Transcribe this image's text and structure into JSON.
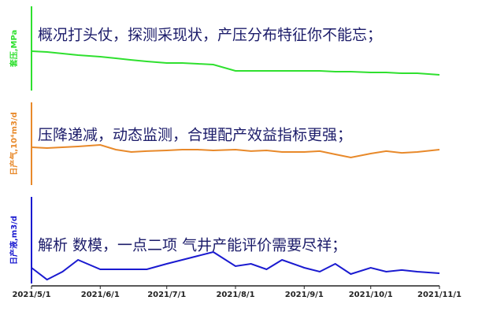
{
  "chart_data": [
    {
      "type": "line",
      "ylabel": "套压,MPa",
      "color": "#2fe02f",
      "ylim": [
        0,
        100
      ],
      "annotation": "概况打头仗，探测采现状，产压分布特征你不能忘；",
      "xlim": [
        "2021/5/1",
        "2021/11/1"
      ],
      "x": [
        "2021/5/1",
        "2021/5/8",
        "2021/5/15",
        "2021/5/22",
        "2021/6/1",
        "2021/6/8",
        "2021/6/15",
        "2021/6/22",
        "2021/7/1",
        "2021/7/8",
        "2021/7/15",
        "2021/7/22",
        "2021/8/1",
        "2021/8/8",
        "2021/8/15",
        "2021/8/22",
        "2021/9/1",
        "2021/9/8",
        "2021/9/15",
        "2021/9/22",
        "2021/10/1",
        "2021/10/8",
        "2021/10/15",
        "2021/10/22",
        "2021/11/1"
      ],
      "values": [
        46.7,
        45.8,
        43.9,
        42.1,
        40.2,
        38.3,
        36.4,
        34.6,
        32.7,
        32.7,
        31.8,
        30.8,
        23.4,
        23.4,
        23.4,
        23.4,
        23.4,
        23.4,
        22.4,
        22.4,
        21.5,
        21.5,
        20.6,
        20.6,
        18.7
      ]
    },
    {
      "type": "line",
      "ylabel": "日产气,10⁴m3/d",
      "color": "#e8892a",
      "ylim": [
        0,
        100
      ],
      "annotation": "压降递减，动态监测，合理配产效益指标更强；",
      "xlim": [
        "2021/5/1",
        "2021/11/1"
      ],
      "x": [
        "2021/5/1",
        "2021/5/8",
        "2021/5/15",
        "2021/5/22",
        "2021/6/1",
        "2021/6/8",
        "2021/6/15",
        "2021/6/22",
        "2021/7/1",
        "2021/7/8",
        "2021/7/15",
        "2021/7/22",
        "2021/8/1",
        "2021/8/8",
        "2021/8/15",
        "2021/8/22",
        "2021/9/1",
        "2021/9/8",
        "2021/9/15",
        "2021/9/22",
        "2021/10/1",
        "2021/10/8",
        "2021/10/15",
        "2021/10/22",
        "2021/11/1"
      ],
      "values": [
        45.7,
        44.8,
        45.7,
        46.7,
        48.6,
        42.9,
        40.0,
        41.0,
        41.9,
        42.9,
        42.9,
        41.9,
        42.9,
        41.0,
        41.9,
        40.0,
        40.0,
        41.0,
        37.1,
        33.3,
        38.1,
        41.0,
        39.0,
        40.0,
        42.9
      ]
    },
    {
      "type": "line",
      "ylabel": "日产液,m3/d",
      "color": "#1a1ad0",
      "ylim": [
        0,
        100
      ],
      "annotation": "解析  数模，一点二项  气井产能评价需要尽祥；",
      "xlim": [
        "2021/5/1",
        "2021/11/1"
      ],
      "xticks": [
        "2021/5/1",
        "2021/6/1",
        "2021/7/1",
        "2021/8/1",
        "2021/9/1",
        "2021/10/1",
        "2021/11/1"
      ],
      "x": [
        "2021/5/1",
        "2021/5/8",
        "2021/5/15",
        "2021/5/22",
        "2021/6/1",
        "2021/6/8",
        "2021/6/15",
        "2021/6/22",
        "2021/7/1",
        "2021/7/8",
        "2021/7/15",
        "2021/7/22",
        "2021/8/1",
        "2021/8/8",
        "2021/8/15",
        "2021/8/22",
        "2021/9/1",
        "2021/9/8",
        "2021/9/15",
        "2021/9/22",
        "2021/10/1",
        "2021/10/8",
        "2021/10/15",
        "2021/10/22",
        "2021/11/1"
      ],
      "values": [
        18.2,
        4.5,
        13.6,
        27.3,
        16.4,
        16.4,
        16.4,
        16.4,
        22.7,
        27.3,
        31.8,
        36.4,
        20.0,
        22.7,
        16.4,
        27.3,
        18.2,
        13.6,
        22.7,
        10.9,
        18.2,
        13.6,
        15.5,
        13.6,
        11.8
      ]
    }
  ]
}
